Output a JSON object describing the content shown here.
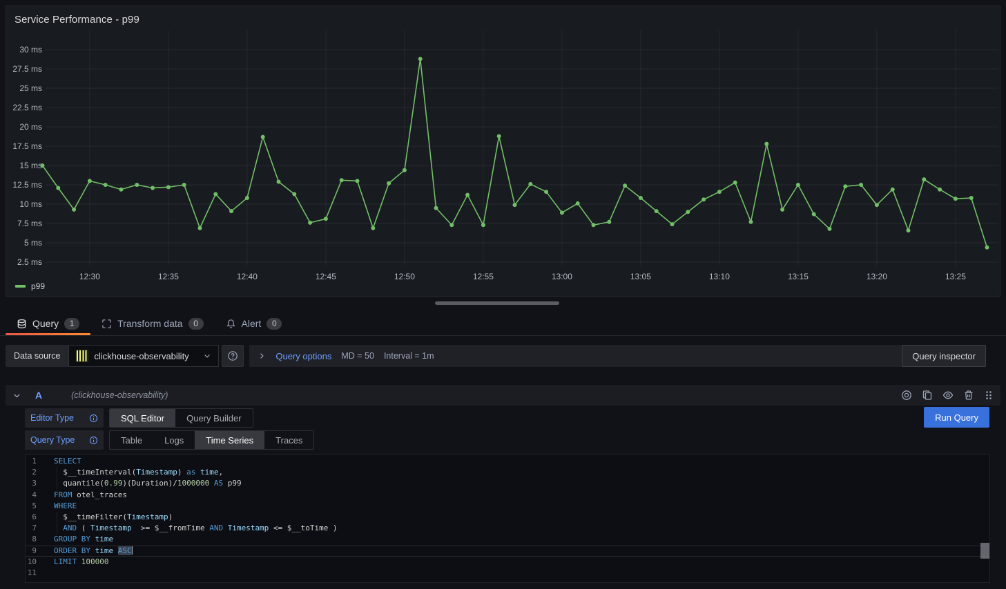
{
  "colors": {
    "series_green": "#73BF69",
    "primary_blue": "#3871DC",
    "link_blue": "#6E9FFF",
    "tab_accent_orange": "#FF780A",
    "clickhouse_yellow": "#F9FD71",
    "syntax_keyword": "#569CD6",
    "syntax_identifier": "#9CDCFE",
    "syntax_number": "#B5CEA8",
    "syntax_plain": "#D4D4D4",
    "panel_bg": "#181B1F",
    "page_bg": "#111217"
  },
  "panel": {
    "title": "Service Performance - p99",
    "legend_label": "p99"
  },
  "chart_data": {
    "type": "line",
    "title": "Service Performance - p99",
    "unit": "ms",
    "start_time": "12:27",
    "step_minutes": 1,
    "x_ticks": [
      "12:30",
      "12:35",
      "12:40",
      "12:45",
      "12:50",
      "12:55",
      "13:00",
      "13:05",
      "13:10",
      "13:15",
      "13:20",
      "13:25"
    ],
    "y_ticks": [
      30,
      27.5,
      25,
      22.5,
      20,
      17.5,
      15,
      12.5,
      10,
      7.5,
      5,
      2.5
    ],
    "y_tick_suffix": " ms",
    "ylim": [
      1.5,
      31.5
    ],
    "grid": true,
    "legend_position": "bottom-left",
    "series": [
      {
        "name": "p99",
        "color": "#73BF69",
        "values": [
          15.0,
          12.1,
          9.3,
          13.0,
          12.5,
          11.9,
          12.5,
          12.1,
          12.2,
          12.5,
          6.9,
          11.3,
          9.1,
          10.8,
          18.7,
          12.9,
          11.3,
          7.6,
          8.1,
          13.1,
          13.0,
          6.9,
          12.7,
          14.4,
          28.8,
          9.5,
          7.3,
          11.2,
          7.3,
          18.8,
          9.9,
          12.6,
          11.6,
          8.9,
          10.1,
          7.3,
          7.7,
          12.4,
          10.8,
          9.1,
          7.4,
          9.0,
          10.6,
          11.6,
          12.8,
          7.7,
          17.8,
          9.3,
          12.5,
          8.7,
          6.8,
          12.3,
          12.5,
          9.9,
          11.9,
          6.6,
          13.2,
          11.9,
          10.7,
          10.8,
          4.4
        ]
      }
    ]
  },
  "tabs": {
    "query": {
      "label": "Query",
      "count": "1"
    },
    "transform": {
      "label": "Transform data",
      "count": "0"
    },
    "alert": {
      "label": "Alert",
      "count": "0"
    }
  },
  "datasource_bar": {
    "label": "Data source",
    "selected": "clickhouse-observability",
    "options_toggle": "Query options",
    "max_data_points": "MD = 50",
    "interval": "Interval = 1m",
    "inspector_button": "Query inspector"
  },
  "query_row": {
    "ref_id": "A",
    "datasource_hint": "(clickhouse-observability)",
    "editor_type_label": "Editor Type",
    "editor_type_options": [
      "SQL Editor",
      "Query Builder"
    ],
    "editor_type_selected": "SQL Editor",
    "query_type_label": "Query Type",
    "query_type_options": [
      "Table",
      "Logs",
      "Time Series",
      "Traces"
    ],
    "query_type_selected": "Time Series",
    "run_button": "Run Query"
  },
  "sql_editor": {
    "lines": [
      {
        "num": 1,
        "segments": [
          {
            "t": "SELECT",
            "s": "kw"
          }
        ]
      },
      {
        "num": 2,
        "segments": [
          {
            "t": "  $__timeInterval(",
            "s": "pl"
          },
          {
            "t": "Timestamp",
            "s": "id"
          },
          {
            "t": ") ",
            "s": "pl"
          },
          {
            "t": "as",
            "s": "kw"
          },
          {
            "t": " ",
            "s": "pl"
          },
          {
            "t": "time",
            "s": "id"
          },
          {
            "t": ",",
            "s": "pl"
          }
        ]
      },
      {
        "num": 3,
        "segments": [
          {
            "t": "  quantile(",
            "s": "pl"
          },
          {
            "t": "0.99",
            "s": "num"
          },
          {
            "t": ")(Duration)/",
            "s": "pl"
          },
          {
            "t": "1000000",
            "s": "num"
          },
          {
            "t": " ",
            "s": "pl"
          },
          {
            "t": "AS",
            "s": "kw"
          },
          {
            "t": " p99",
            "s": "pl"
          }
        ]
      },
      {
        "num": 4,
        "segments": [
          {
            "t": "FROM",
            "s": "kw"
          },
          {
            "t": " otel_traces",
            "s": "pl"
          }
        ]
      },
      {
        "num": 5,
        "segments": [
          {
            "t": "WHERE",
            "s": "kw"
          }
        ]
      },
      {
        "num": 6,
        "segments": [
          {
            "t": "  $__timeFilter(",
            "s": "pl"
          },
          {
            "t": "Timestamp",
            "s": "id"
          },
          {
            "t": ")",
            "s": "pl"
          }
        ]
      },
      {
        "num": 7,
        "segments": [
          {
            "t": "  ",
            "s": "pl"
          },
          {
            "t": "AND",
            "s": "kw"
          },
          {
            "t": " ( ",
            "s": "pl"
          },
          {
            "t": "Timestamp",
            "s": "id"
          },
          {
            "t": "  >= $__fromTime ",
            "s": "pl"
          },
          {
            "t": "AND",
            "s": "kw"
          },
          {
            "t": " ",
            "s": "pl"
          },
          {
            "t": "Timestamp",
            "s": "id"
          },
          {
            "t": " <= $__toTime )",
            "s": "pl"
          }
        ]
      },
      {
        "num": 8,
        "segments": [
          {
            "t": "GROUP BY",
            "s": "kw"
          },
          {
            "t": " ",
            "s": "pl"
          },
          {
            "t": "time",
            "s": "id"
          }
        ]
      },
      {
        "num": 9,
        "current": true,
        "segments": [
          {
            "t": "ORDER BY",
            "s": "kw"
          },
          {
            "t": " ",
            "s": "pl"
          },
          {
            "t": "time",
            "s": "id"
          },
          {
            "t": " ",
            "s": "pl"
          },
          {
            "t": "ASC",
            "s": "kw",
            "highlight": true,
            "cursor": true
          }
        ]
      },
      {
        "num": 10,
        "segments": [
          {
            "t": "LIMIT",
            "s": "kw"
          },
          {
            "t": " ",
            "s": "pl"
          },
          {
            "t": "100000",
            "s": "num"
          }
        ]
      },
      {
        "num": 11,
        "segments": []
      }
    ]
  }
}
